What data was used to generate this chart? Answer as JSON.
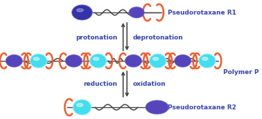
{
  "background_color": "#ffffff",
  "blue_label_color": "#3344bb",
  "arrow_color": "#444444",
  "polymer_label": "Polymer P",
  "r1_label": "Pseudorotaxane R1",
  "r2_label": "Pseudorotaxane R2",
  "protonation_label": "protonation",
  "deprotonation_label": "deprotonation",
  "reduction_label": "reduction",
  "oxidation_label": "oxidation",
  "cyan_color": "#44ddee",
  "blue_color": "#5544bb",
  "darkblue_color": "#3333aa",
  "ring_color": "#ff5522",
  "thread_color": "#444444",
  "figw": 3.78,
  "figh": 1.72,
  "dpi": 100
}
